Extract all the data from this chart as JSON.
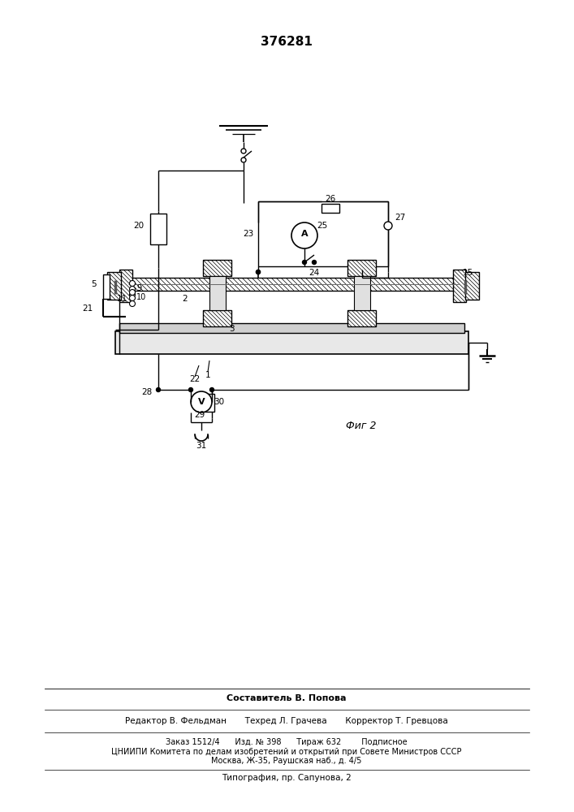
{
  "title": "376281",
  "fig_label": "Фиг 2",
  "bg_color": "#ffffff",
  "line_color": "#000000",
  "footer_lines": [
    "Составитель В. Попова",
    "Редактор В. Фельдман       Техред Л. Грачева       Корректор Т. Гревцова",
    "Заказ 1512/4      Изд. № 398      Тираж 632        Подписное",
    "ЦНИИПИ Комитета по делам изобретений и открытий при Совете Министров СССР",
    "Москва, Ж-35, Раушская наб., д. 4/5",
    "Типография, пр. Сапуновa, 2"
  ]
}
